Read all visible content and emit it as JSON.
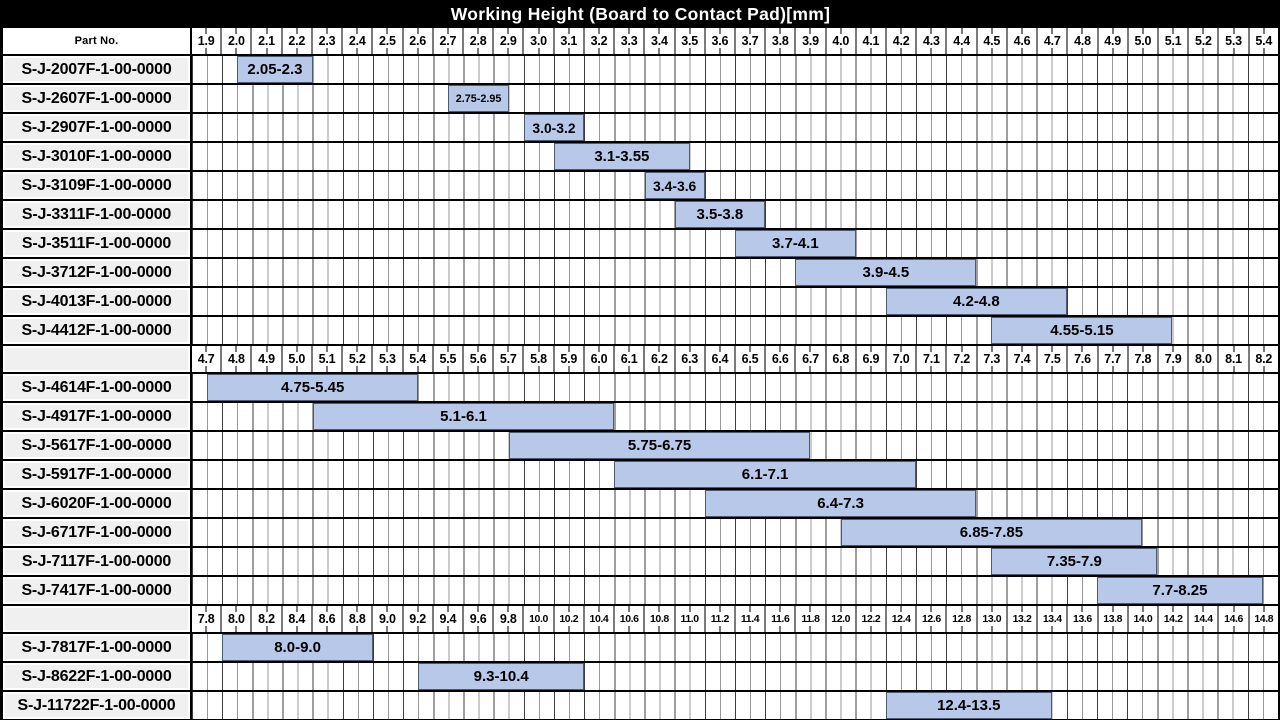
{
  "title": "Working Height (Board to Contact Pad)[mm]",
  "part_no_label": "Part No.",
  "colors": {
    "title_bg": "#000000",
    "title_fg": "#ffffff",
    "bar_fill": "#b8c8e8",
    "bar_border": "#4d5a74",
    "label_cell_bg": "#f0f0f0",
    "grid_line_major": "#3f3f3f",
    "grid_line_minor": "#999999",
    "scale_separator": "#7a7a7a",
    "row_border": "#000000"
  },
  "chart_data": {
    "type": "gantt",
    "title": "Working Height (Board to Contact Pad)[mm]",
    "unit": "mm",
    "legend_position": "none",
    "grid": true,
    "sections": [
      {
        "scale_start": 1.9,
        "scale_step": 0.1,
        "columns": 36,
        "scale_labels": [
          "1.9",
          "2.0",
          "2.1",
          "2.2",
          "2.3",
          "2.4",
          "2.5",
          "2.6",
          "2.7",
          "2.8",
          "2.9",
          "3.0",
          "3.1",
          "3.2",
          "3.3",
          "3.4",
          "3.5",
          "3.6",
          "3.7",
          "3.8",
          "3.9",
          "4.0",
          "4.1",
          "4.2",
          "4.3",
          "4.4",
          "4.5",
          "4.6",
          "4.7",
          "4.8",
          "4.9",
          "5.0",
          "5.1",
          "5.2",
          "5.3",
          "5.4"
        ],
        "rows": [
          {
            "part_no": "S-J-2007F-1-00-0000",
            "range": "2.05-2.3",
            "start": 2.05,
            "end": 2.3
          },
          {
            "part_no": "S-J-2607F-1-00-0000",
            "range": "2.75-2.95",
            "start": 2.75,
            "end": 2.95
          },
          {
            "part_no": "S-J-2907F-1-00-0000",
            "range": "3.0-3.2",
            "start": 3.0,
            "end": 3.2
          },
          {
            "part_no": "S-J-3010F-1-00-0000",
            "range": "3.1-3.55",
            "start": 3.1,
            "end": 3.55
          },
          {
            "part_no": "S-J-3109F-1-00-0000",
            "range": "3.4-3.6",
            "start": 3.4,
            "end": 3.6
          },
          {
            "part_no": "S-J-3311F-1-00-0000",
            "range": "3.5-3.8",
            "start": 3.5,
            "end": 3.8
          },
          {
            "part_no": "S-J-3511F-1-00-0000",
            "range": "3.7-4.1",
            "start": 3.7,
            "end": 4.1
          },
          {
            "part_no": "S-J-3712F-1-00-0000",
            "range": "3.9-4.5",
            "start": 3.9,
            "end": 4.5
          },
          {
            "part_no": "S-J-4013F-1-00-0000",
            "range": "4.2-4.8",
            "start": 4.2,
            "end": 4.8
          },
          {
            "part_no": "S-J-4412F-1-00-0000",
            "range": "4.55-5.15",
            "start": 4.55,
            "end": 5.15
          }
        ]
      },
      {
        "scale_start": 4.7,
        "scale_step": 0.1,
        "columns": 36,
        "scale_labels": [
          "4.7",
          "4.8",
          "4.9",
          "5.0",
          "5.1",
          "5.2",
          "5.3",
          "5.4",
          "5.5",
          "5.6",
          "5.7",
          "5.8",
          "5.9",
          "6.0",
          "6.1",
          "6.2",
          "6.3",
          "6.4",
          "6.5",
          "6.6",
          "6.7",
          "6.8",
          "6.9",
          "7.0",
          "7.1",
          "7.2",
          "7.3",
          "7.4",
          "7.5",
          "7.6",
          "7.7",
          "7.8",
          "7.9",
          "8.0",
          "8.1",
          "8.2"
        ],
        "rows": [
          {
            "part_no": "S-J-4614F-1-00-0000",
            "range": "4.75-5.45",
            "start": 4.75,
            "end": 5.45
          },
          {
            "part_no": "S-J-4917F-1-00-0000",
            "range": "5.1-6.1",
            "start": 5.1,
            "end": 6.1
          },
          {
            "part_no": "S-J-5617F-1-00-0000",
            "range": "5.75-6.75",
            "start": 5.75,
            "end": 6.75
          },
          {
            "part_no": "S-J-5917F-1-00-0000",
            "range": "6.1-7.1",
            "start": 6.1,
            "end": 7.1
          },
          {
            "part_no": "S-J-6020F-1-00-0000",
            "range": "6.4-7.3",
            "start": 6.4,
            "end": 7.3
          },
          {
            "part_no": "S-J-6717F-1-00-0000",
            "range": "6.85-7.85",
            "start": 6.85,
            "end": 7.85
          },
          {
            "part_no": "S-J-7117F-1-00-0000",
            "range": "7.35-7.9",
            "start": 7.35,
            "end": 7.9
          },
          {
            "part_no": "S-J-7417F-1-00-0000",
            "range": "7.7-8.25",
            "start": 7.7,
            "end": 8.25
          }
        ]
      },
      {
        "scale_start": 7.8,
        "scale_step": 0.2,
        "columns": 36,
        "scale_labels": [
          "7.8",
          "8.0",
          "8.2",
          "8.4",
          "8.6",
          "8.8",
          "9.0",
          "9.2",
          "9.4",
          "9.6",
          "9.8",
          "10.0",
          "10.2",
          "10.4",
          "10.6",
          "10.8",
          "11.0",
          "11.2",
          "11.4",
          "11.6",
          "11.8",
          "12.0",
          "12.2",
          "12.4",
          "12.6",
          "12.8",
          "13.0",
          "13.2",
          "13.4",
          "13.6",
          "13.8",
          "14.0",
          "14.2",
          "14.4",
          "14.6",
          "14.8"
        ],
        "rows": [
          {
            "part_no": "S-J-7817F-1-00-0000",
            "range": "8.0-9.0",
            "start": 8.0,
            "end": 9.0
          },
          {
            "part_no": "S-J-8622F-1-00-0000",
            "range": "9.3-10.4",
            "start": 9.3,
            "end": 10.4
          },
          {
            "part_no": "S-J-11722F-1-00-0000",
            "range": "12.4-13.5",
            "start": 12.4,
            "end": 13.5
          }
        ]
      }
    ]
  }
}
